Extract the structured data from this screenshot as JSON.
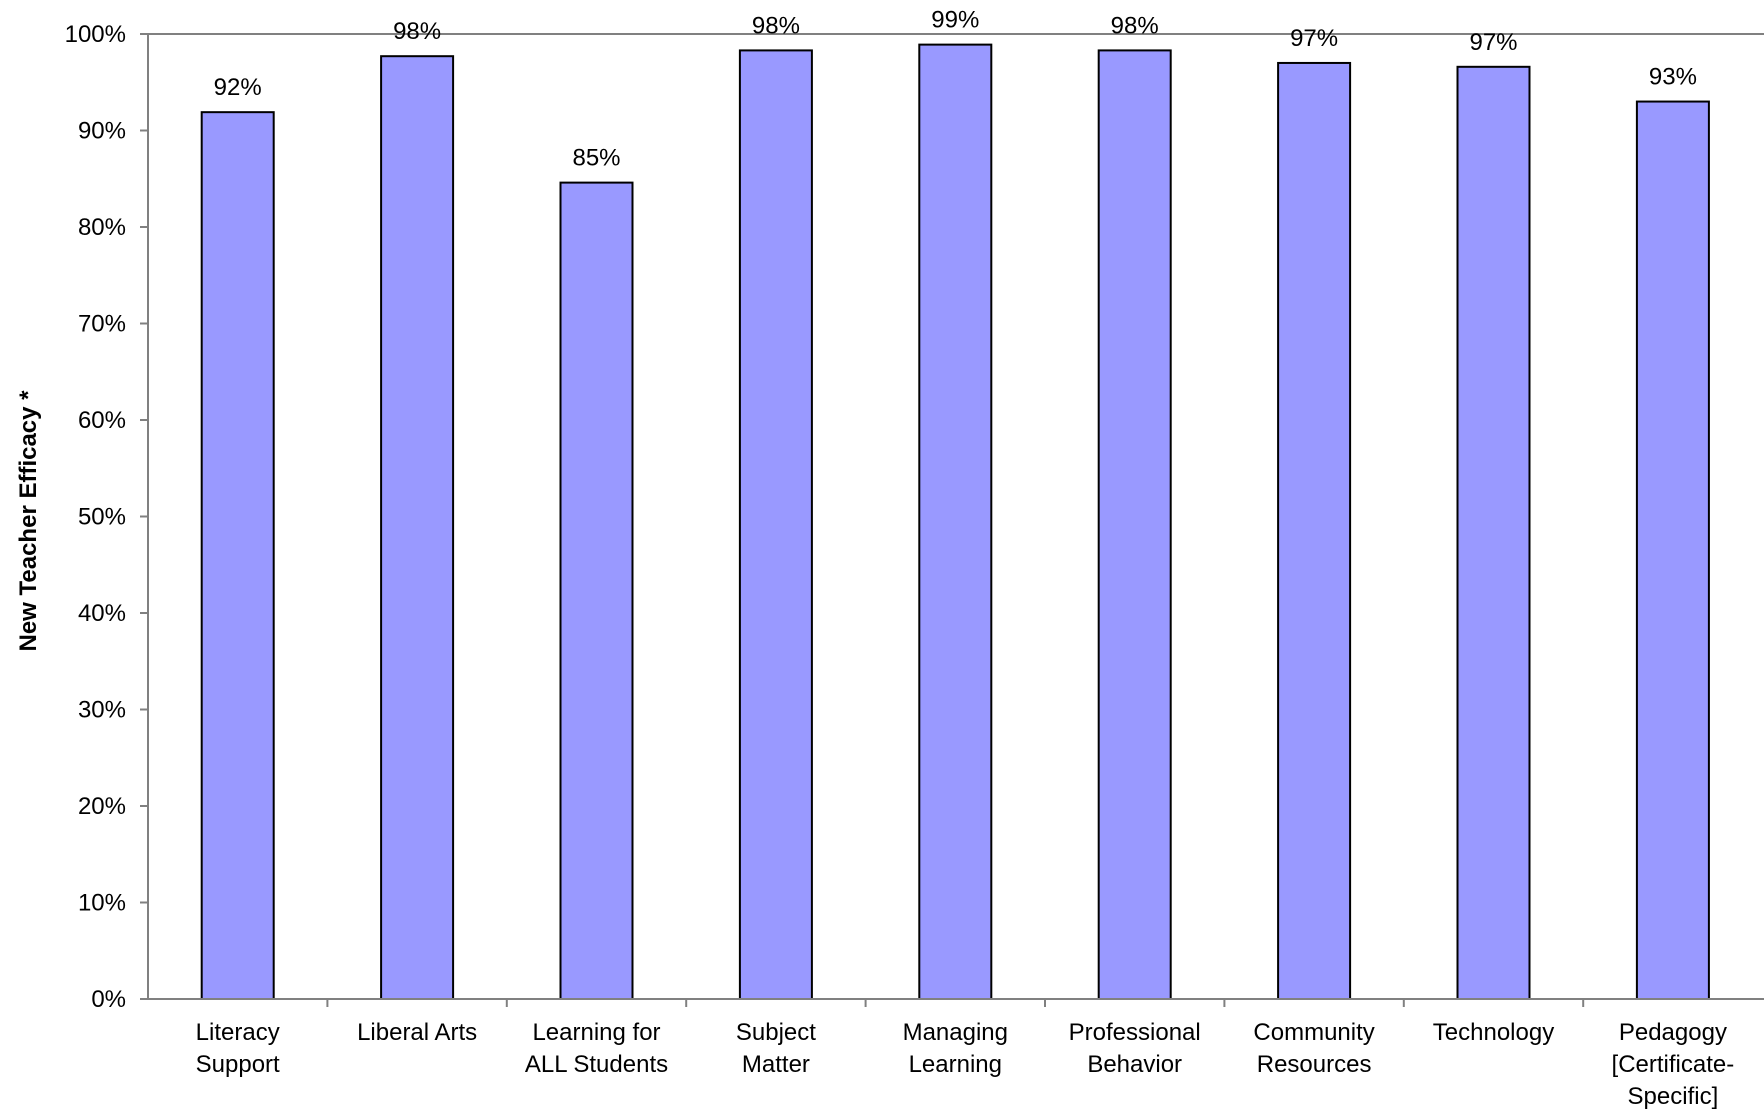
{
  "chart_data": {
    "type": "bar",
    "categories": [
      [
        "Literacy",
        "Support"
      ],
      [
        "Liberal Arts"
      ],
      [
        "Learning for",
        "ALL Students"
      ],
      [
        "Subject",
        "Matter"
      ],
      [
        "Managing",
        "Learning"
      ],
      [
        "Professional",
        "Behavior"
      ],
      [
        "Community",
        "Resources"
      ],
      [
        "Technology"
      ],
      [
        "Pedagogy",
        "[Certificate-",
        "Specific]"
      ]
    ],
    "values": [
      92,
      98,
      85,
      98,
      99,
      98,
      97,
      97,
      93
    ],
    "bar_values": [
      91.9,
      97.7,
      84.6,
      98.3,
      98.9,
      98.3,
      97.0,
      96.6,
      93.0
    ],
    "value_labels": [
      "92%",
      "98%",
      "85%",
      "98%",
      "99%",
      "98%",
      "97%",
      "97%",
      "93%"
    ],
    "ylabel": "New Teacher Efficacy *",
    "xlabel": "",
    "title": "",
    "ylim": [
      0,
      100
    ],
    "yticks": [
      0,
      10,
      20,
      30,
      40,
      50,
      60,
      70,
      80,
      90,
      100
    ],
    "ytick_labels": [
      "0%",
      "10%",
      "20%",
      "30%",
      "40%",
      "50%",
      "60%",
      "70%",
      "80%",
      "90%",
      "100%"
    ],
    "grid": false,
    "legend": "none",
    "bar_color": "#9999ff",
    "bar_edge_color": "#000000"
  }
}
